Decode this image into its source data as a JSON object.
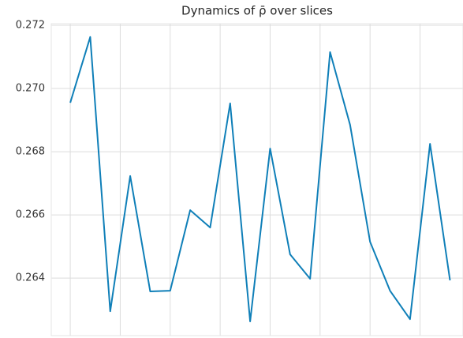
{
  "chart_data": {
    "type": "line",
    "title": "Dynamics of ρ̄ over slices",
    "x": [
      0,
      1,
      2,
      3,
      4,
      5,
      6,
      7,
      8,
      9,
      10,
      11,
      12,
      13,
      14,
      15,
      16,
      17,
      18,
      19
    ],
    "series": [
      {
        "color": "#0f7fb8",
        "values": [
          0.26955,
          0.27163,
          0.26295,
          0.26723,
          0.26358,
          0.2636,
          0.26615,
          0.2656,
          0.26953,
          0.26263,
          0.2681,
          0.26475,
          0.26398,
          0.27115,
          0.26885,
          0.26515,
          0.2636,
          0.2627,
          0.26825,
          0.26393
        ]
      }
    ],
    "xlim": [
      -0.95,
      19.65
    ],
    "xticks": [
      0,
      2.5,
      5,
      7.5,
      10,
      12.5,
      15,
      17.5
    ],
    "ylim": [
      0.26218,
      0.27205
    ],
    "yticks": [
      {
        "value": 0.264,
        "label": "0.264"
      },
      {
        "value": 0.266,
        "label": "0.266"
      },
      {
        "value": 0.268,
        "label": "0.268"
      },
      {
        "value": 0.27,
        "label": "0.270"
      },
      {
        "value": 0.272,
        "label": "0.272"
      }
    ],
    "grid": true
  }
}
